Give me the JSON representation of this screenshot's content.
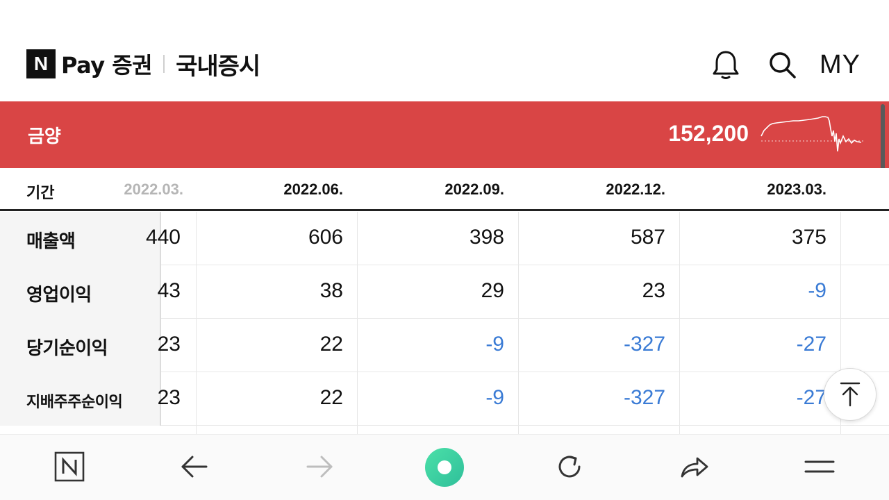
{
  "header": {
    "logo_letter": "N",
    "brand": "Pay 증권",
    "section": "국내증시",
    "icons": [
      "bell-icon",
      "search-icon"
    ],
    "my_label": "MY"
  },
  "stock": {
    "name": "금양",
    "price": "152,200",
    "bar_color": "#d94545"
  },
  "table": {
    "period_label": "기간",
    "clipped_period": "2022.03.",
    "periods": [
      "2022.06.",
      "2022.09.",
      "2022.12.",
      "2023.03."
    ],
    "rows": [
      {
        "label": "매출액",
        "clipped": "440",
        "values": [
          "606",
          "398",
          "587",
          "375"
        ]
      },
      {
        "label": "영업이익",
        "clipped": "43",
        "values": [
          "38",
          "29",
          "23",
          "-9"
        ]
      },
      {
        "label": "당기순이익",
        "clipped": "23",
        "values": [
          "22",
          "-9",
          "-327",
          "-27"
        ]
      },
      {
        "label": "지배주주순이익",
        "clipped": "23",
        "values": [
          "22",
          "-9",
          "-327",
          "-27"
        ]
      }
    ],
    "negative_color": "#3a7bd5"
  },
  "toolbar": {
    "items": [
      "naver-home-icon",
      "back-arrow-icon",
      "forward-arrow-icon",
      "green-dot-icon",
      "refresh-icon",
      "share-icon",
      "menu-icon"
    ]
  }
}
